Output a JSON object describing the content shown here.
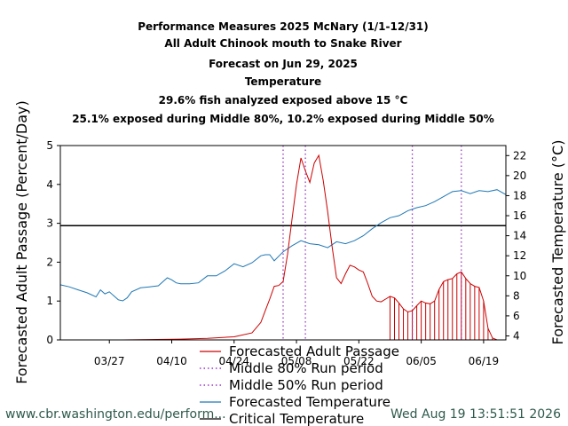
{
  "title_lines": [
    "Performance Measures 2025 McNary (1/1-12/31)",
    "All Adult Chinook mouth to Snake River",
    "Forecast on Jun 29, 2025",
    "Temperature",
    "29.6% fish analyzed exposed above 15 °C",
    "25.1% exposed during Middle 80%, 10.2% exposed during Middle 50%"
  ],
  "footer": {
    "left": "www.cbr.washington.edu/perform...",
    "right": "Wed Aug 19 13:51:51 2026"
  },
  "legend": [
    {
      "label": "Forecasted Adult Passage",
      "color": "#cc0000",
      "style": "solid"
    },
    {
      "label": "Middle 80% Run period",
      "color": "#9933cc",
      "style": "dotted"
    },
    {
      "label": "Middle 50% Run period",
      "color": "#9933cc",
      "style": "dotted"
    },
    {
      "label": "Forecasted Temperature",
      "color": "#1f77b4",
      "style": "solid"
    },
    {
      "label": "Critical Temperature",
      "color": "#000000",
      "style": "solid"
    }
  ],
  "chart_data": {
    "type": "line",
    "ylabel": "Forecasted Adult Passage (Percent/Day)",
    "y2label": "Forecasted Temperature (°C)",
    "xlim": [
      "2025-03-16",
      "2025-06-24"
    ],
    "ylim": [
      0,
      5
    ],
    "y2lim": [
      3.6,
      23.0
    ],
    "x_ticks": [
      {
        "date": "2025-03-27",
        "label": "03/27"
      },
      {
        "date": "2025-04-10",
        "label": "04/10"
      },
      {
        "date": "2025-04-24",
        "label": "04/24"
      },
      {
        "date": "2025-05-08",
        "label": "05/08"
      },
      {
        "date": "2025-05-22",
        "label": "05/22"
      },
      {
        "date": "2025-06-05",
        "label": "06/05"
      },
      {
        "date": "2025-06-19",
        "label": "06/19"
      }
    ],
    "y_ticks": [
      0,
      1,
      2,
      3,
      4,
      5
    ],
    "y2_ticks": [
      4,
      6,
      8,
      10,
      12,
      14,
      16,
      18,
      20,
      22
    ],
    "critical_temperature": 15,
    "middle80_period": [
      "2025-05-05",
      "2025-06-14"
    ],
    "middle50_period": [
      "2025-05-10",
      "2025-06-03"
    ],
    "forecast_start": "2025-05-29",
    "passage": {
      "name": "Forecasted Adult Passage",
      "x": [
        "2025-03-16",
        "2025-03-20",
        "2025-03-25",
        "2025-03-30",
        "2025-04-05",
        "2025-04-12",
        "2025-04-18",
        "2025-04-24",
        "2025-04-28",
        "2025-04-30",
        "2025-05-01",
        "2025-05-02",
        "2025-05-03",
        "2025-05-04",
        "2025-05-05",
        "2025-05-06",
        "2025-05-07",
        "2025-05-08",
        "2025-05-09",
        "2025-05-10",
        "2025-05-11",
        "2025-05-12",
        "2025-05-13",
        "2025-05-14",
        "2025-05-15",
        "2025-05-16",
        "2025-05-17",
        "2025-05-18",
        "2025-05-19",
        "2025-05-20",
        "2025-05-21",
        "2025-05-22",
        "2025-05-23",
        "2025-05-24",
        "2025-05-25",
        "2025-05-26",
        "2025-05-27",
        "2025-05-28",
        "2025-05-29",
        "2025-05-30",
        "2025-05-31",
        "2025-06-01",
        "2025-06-02",
        "2025-06-03",
        "2025-06-04",
        "2025-06-05",
        "2025-06-06",
        "2025-06-07",
        "2025-06-08",
        "2025-06-09",
        "2025-06-10",
        "2025-06-11",
        "2025-06-12",
        "2025-06-13",
        "2025-06-14",
        "2025-06-15",
        "2025-06-16",
        "2025-06-17",
        "2025-06-18",
        "2025-06-19",
        "2025-06-20",
        "2025-06-21",
        "2025-06-22",
        "2025-06-23"
      ],
      "values": [
        0,
        0,
        0,
        0,
        0.01,
        0.02,
        0.04,
        0.08,
        0.18,
        0.45,
        0.75,
        1.05,
        1.38,
        1.4,
        1.5,
        2.2,
        3.1,
        4.0,
        4.68,
        4.35,
        4.05,
        4.55,
        4.75,
        4.1,
        3.3,
        2.4,
        1.6,
        1.45,
        1.7,
        1.92,
        1.88,
        1.8,
        1.75,
        1.45,
        1.12,
        1.0,
        0.98,
        1.05,
        1.12,
        1.08,
        0.95,
        0.8,
        0.72,
        0.75,
        0.88,
        1.0,
        0.95,
        0.93,
        1.0,
        1.3,
        1.5,
        1.55,
        1.58,
        1.7,
        1.75,
        1.58,
        1.45,
        1.38,
        1.35,
        1.0,
        0.3,
        0.05,
        0,
        0
      ]
    },
    "temperature": {
      "name": "Forecasted Temperature",
      "x": [
        "2025-03-16",
        "2025-03-18",
        "2025-03-20",
        "2025-03-22",
        "2025-03-24",
        "2025-03-25",
        "2025-03-26",
        "2025-03-27",
        "2025-03-28",
        "2025-03-29",
        "2025-03-30",
        "2025-03-31",
        "2025-04-01",
        "2025-04-03",
        "2025-04-05",
        "2025-04-07",
        "2025-04-09",
        "2025-04-10",
        "2025-04-11",
        "2025-04-12",
        "2025-04-14",
        "2025-04-16",
        "2025-04-18",
        "2025-04-20",
        "2025-04-22",
        "2025-04-24",
        "2025-04-26",
        "2025-04-28",
        "2025-04-30",
        "2025-05-01",
        "2025-05-02",
        "2025-05-03",
        "2025-05-05",
        "2025-05-07",
        "2025-05-09",
        "2025-05-11",
        "2025-05-13",
        "2025-05-15",
        "2025-05-17",
        "2025-05-19",
        "2025-05-21",
        "2025-05-23",
        "2025-05-25",
        "2025-05-27",
        "2025-05-29",
        "2025-05-31",
        "2025-06-02",
        "2025-06-04",
        "2025-06-06",
        "2025-06-08",
        "2025-06-10",
        "2025-06-12",
        "2025-06-14",
        "2025-06-16",
        "2025-06-18",
        "2025-06-20",
        "2025-06-22",
        "2025-06-24"
      ],
      "values": [
        9.1,
        8.9,
        8.6,
        8.3,
        7.9,
        8.6,
        8.2,
        8.4,
        8.0,
        7.6,
        7.5,
        7.8,
        8.4,
        8.8,
        8.9,
        9.0,
        9.8,
        9.6,
        9.3,
        9.2,
        9.2,
        9.3,
        10.0,
        10.0,
        10.5,
        11.2,
        10.9,
        11.3,
        12.0,
        12.1,
        12.1,
        11.5,
        12.4,
        13.0,
        13.5,
        13.2,
        13.1,
        12.8,
        13.4,
        13.2,
        13.5,
        14.0,
        14.7,
        15.3,
        15.8,
        16.0,
        16.5,
        16.8,
        17.0,
        17.4,
        17.9,
        18.4,
        18.5,
        18.2,
        18.5,
        18.4,
        18.6,
        18.1
      ]
    }
  }
}
